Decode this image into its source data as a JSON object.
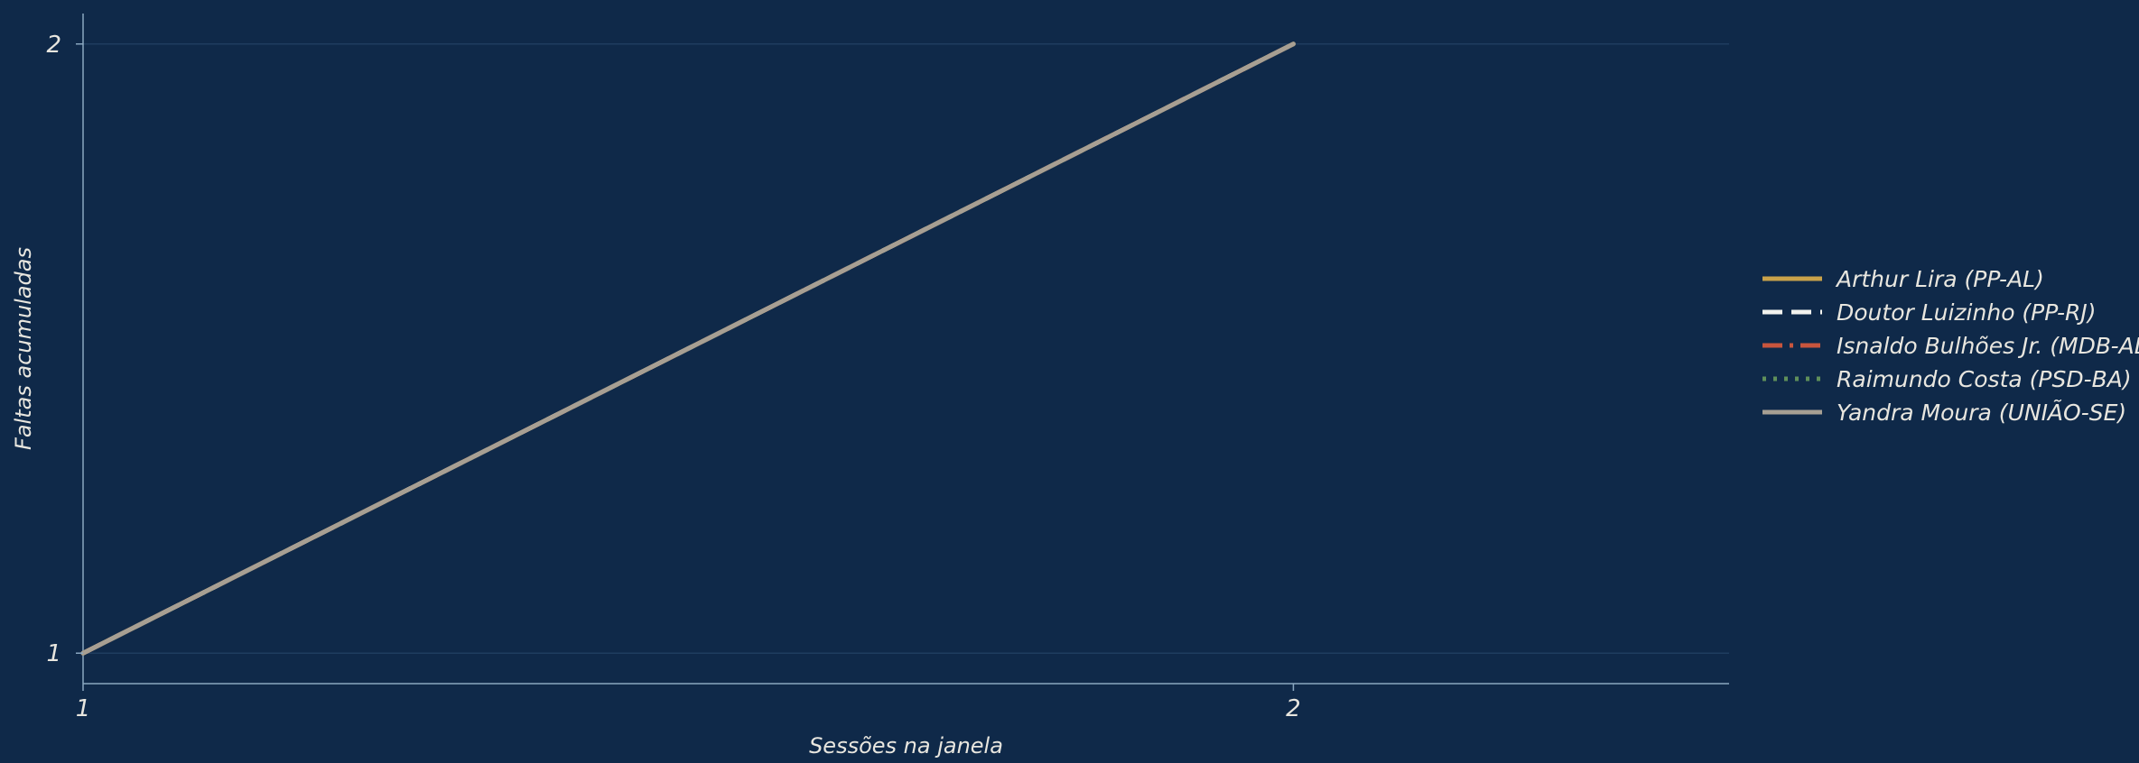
{
  "chart_data": {
    "type": "line",
    "title": "",
    "xlabel": "Sessões na janela",
    "ylabel": "Faltas acumuladas",
    "xlim": [
      1,
      2.36
    ],
    "ylim": [
      0.95,
      2.05
    ],
    "x_ticks": [
      1,
      2
    ],
    "y_ticks": [
      1,
      2
    ],
    "grid": "horizontal",
    "legend_position": "right",
    "series": [
      {
        "name": "Arthur Lira (PP-AL)",
        "color": "#c9a24a",
        "dash": "solid",
        "x": [
          1,
          2
        ],
        "y": [
          1,
          2
        ]
      },
      {
        "name": "Doutor Luizinho (PP-RJ)",
        "color": "#f2f2ee",
        "dash": "dashed",
        "x": [
          1,
          2
        ],
        "y": [
          1,
          2
        ]
      },
      {
        "name": "Isnaldo Bulhões Jr. (MDB-AL)",
        "color": "#c8553d",
        "dash": "dashdot",
        "x": [
          1,
          2
        ],
        "y": [
          1,
          2
        ]
      },
      {
        "name": "Raimundo Costa (PSD-BA)",
        "color": "#5f8f5a",
        "dash": "dotted",
        "x": [
          1,
          2
        ],
        "y": [
          1,
          2
        ]
      },
      {
        "name": "Yandra Moura (UNIÃO-SE)",
        "color": "#a79f93",
        "dash": "solid",
        "x": [
          1,
          2
        ],
        "y": [
          1,
          2
        ]
      }
    ]
  },
  "colors": {
    "background": "#0f2949",
    "axis": "#8aa7c0",
    "grid": "#1f3d5f",
    "text": "#e8e6df"
  }
}
